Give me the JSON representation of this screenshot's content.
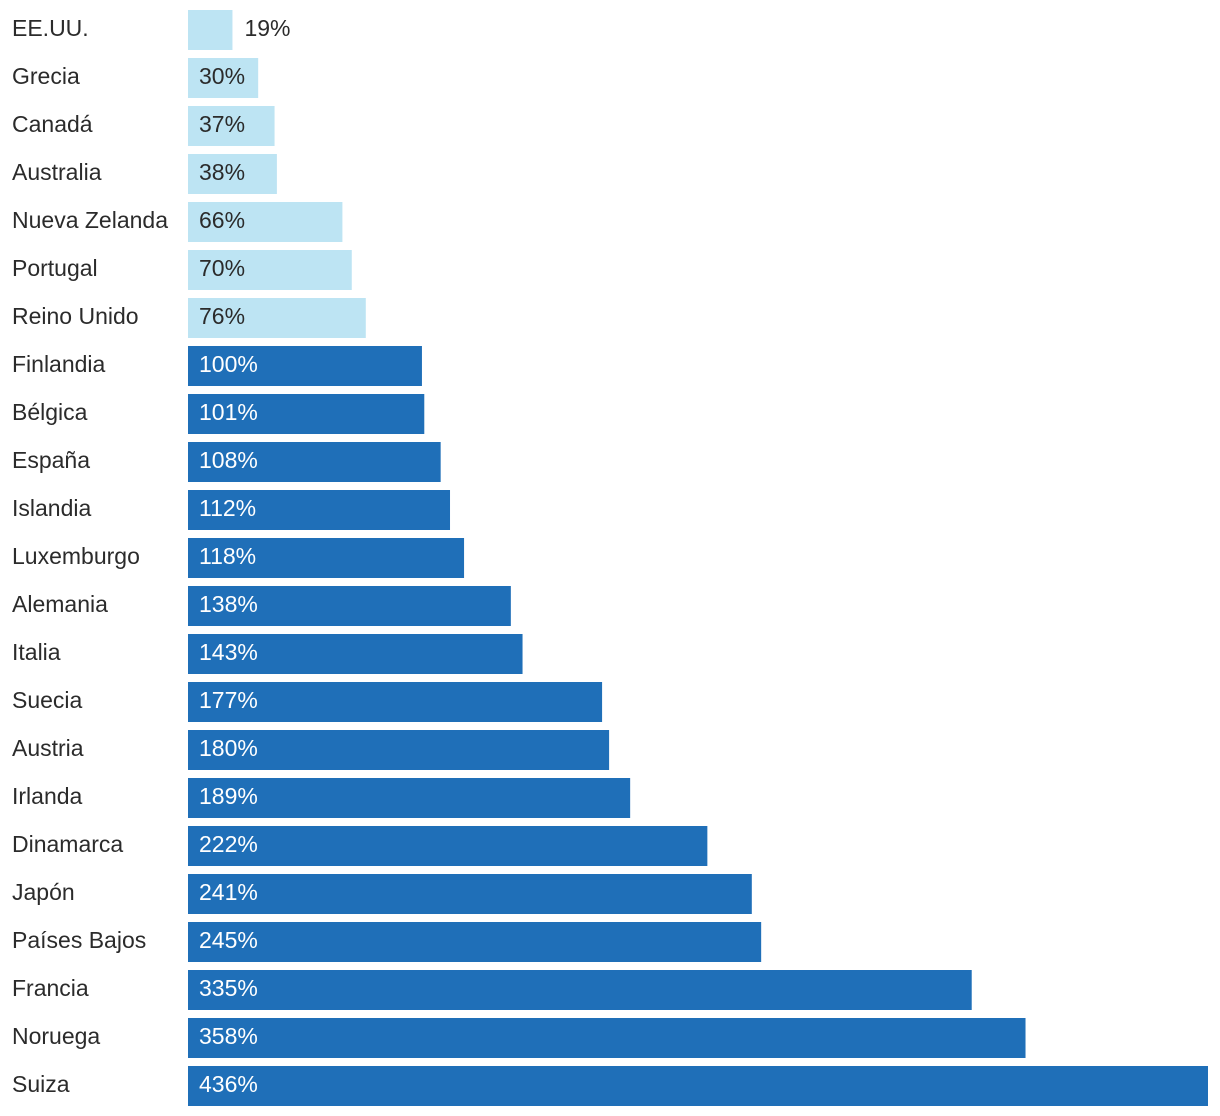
{
  "chart_data": {
    "type": "bar",
    "orientation": "horizontal",
    "title": "",
    "xlabel": "",
    "ylabel": "",
    "xlim": [
      0,
      436
    ],
    "unit_suffix": "%",
    "colors": {
      "low": "#bde4f3",
      "high": "#1f6fb8",
      "label_on_low": "#2b2b2b",
      "label_on_high": "#ffffff",
      "label_outside": "#2b2b2b"
    },
    "threshold_high": 100,
    "categories": [
      "EE.UU.",
      "Grecia",
      "Canadá",
      "Australia",
      "Nueva Zelanda",
      "Portugal",
      "Reino Unido",
      "Finlandia",
      "Bélgica",
      "España",
      "Islandia",
      "Luxemburgo",
      "Alemania",
      "Italia",
      "Suecia",
      "Austria",
      "Irlanda",
      "Dinamarca",
      "Japón",
      "Países Bajos",
      "Francia",
      "Noruega",
      "Suiza"
    ],
    "values": [
      19,
      30,
      37,
      38,
      66,
      70,
      76,
      100,
      101,
      108,
      112,
      118,
      138,
      143,
      177,
      180,
      189,
      222,
      241,
      245,
      335,
      358,
      436
    ],
    "value_labels": [
      "19%",
      "30%",
      "37%",
      "38%",
      "66%",
      "70%",
      "76%",
      "100%",
      "101%",
      "108%",
      "112%",
      "118%",
      "138%",
      "143%",
      "177%",
      "180%",
      "189%",
      "222%",
      "241%",
      "245%",
      "335%",
      "358%",
      "436%"
    ]
  }
}
